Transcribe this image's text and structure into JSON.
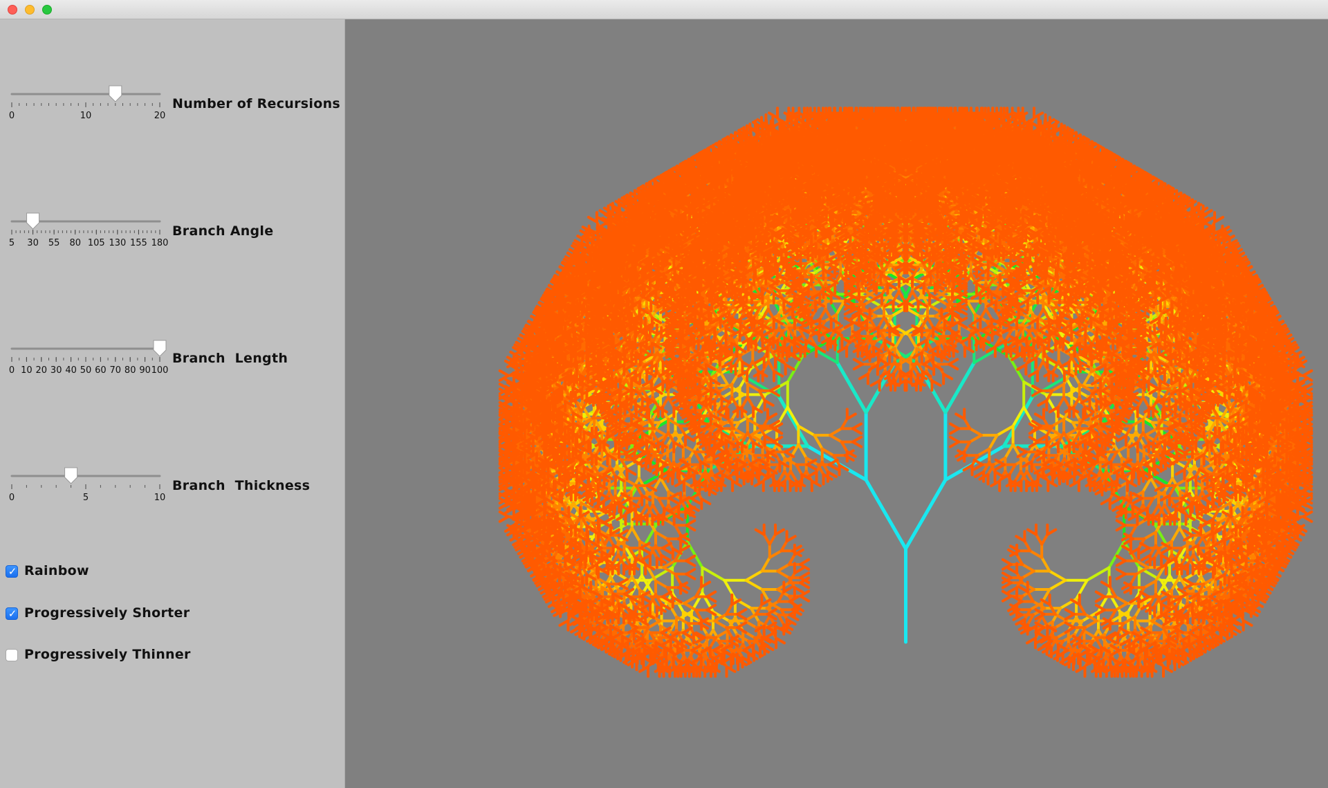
{
  "window": {
    "controls": {
      "close": "close-icon",
      "minimize": "minimize-icon",
      "zoom": "zoom-icon"
    }
  },
  "controls": {
    "sliders": [
      {
        "id": "recursions",
        "label": "Number of Recursions",
        "min": 0,
        "max": 20,
        "value": 14,
        "major_ticks": [
          "0",
          "10",
          "20"
        ],
        "minor_tick_count": 21
      },
      {
        "id": "angle",
        "label": "Branch Angle",
        "min": 5,
        "max": 180,
        "value": 30,
        "major_ticks": [
          "5",
          "30",
          "55",
          "80",
          "105",
          "130",
          "155",
          "180"
        ],
        "minor_tick_count": 36
      },
      {
        "id": "length",
        "label": "Branch  Length",
        "min": 0,
        "max": 100,
        "value": 100,
        "major_ticks": [
          "0",
          "10",
          "20",
          "30",
          "40",
          "50",
          "60",
          "70",
          "80",
          "90",
          "100"
        ],
        "minor_tick_count": 21
      },
      {
        "id": "thickness",
        "label": "Branch  Thickness",
        "min": 0,
        "max": 10,
        "value": 4,
        "major_ticks": [
          "0",
          "5",
          "10"
        ],
        "minor_tick_count": 11
      }
    ],
    "checkboxes": [
      {
        "id": "rainbow",
        "label": "Rainbow",
        "checked": true
      },
      {
        "id": "shorter",
        "label": "Progressively Shorter",
        "checked": true
      },
      {
        "id": "thinner",
        "label": "Progressively Thinner",
        "checked": false
      }
    ]
  },
  "colors": {
    "panel_bg": "#c0c0c0",
    "canvas_bg": "#808080",
    "checkbox_accent": "#2a7cf6",
    "trunk": "#19e8f0",
    "mid_branch": "#19e840",
    "leaf_inner": "#f0f00a",
    "leaf_outer": "#ff6a00"
  },
  "tree": {
    "recursion_depth": 14,
    "branch_angle_deg": 30,
    "rainbow": true,
    "progressively_shorter": true,
    "progressively_thinner": false
  }
}
